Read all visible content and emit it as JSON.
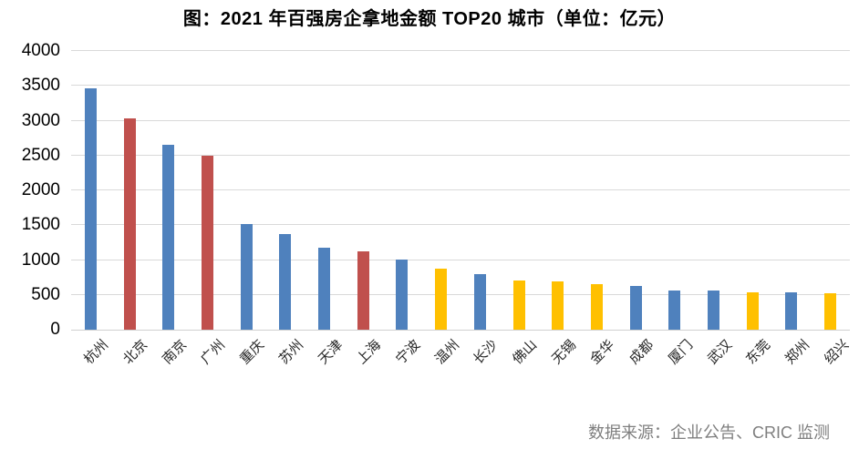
{
  "title": "图：2021 年百强房企拿地金额 TOP20 城市（单位：亿元）",
  "source": "数据来源：企业公告、CRIC 监测",
  "colors": {
    "blue": "#4F81BD",
    "red": "#C0504D",
    "yellow": "#FFC000",
    "gridline": "#D9D9D9",
    "axis_line": "#D0D0D0",
    "title_text": "#000000",
    "axis_text": "#000000",
    "category_text": "#262626",
    "source_text": "#7F7F7F"
  },
  "chart_data": {
    "type": "bar",
    "title": "图：2021 年百强房企拿地金额 TOP20 城市（单位：亿元）",
    "unit": "亿元",
    "categories": [
      "杭州",
      "北京",
      "南京",
      "广州",
      "重庆",
      "苏州",
      "天津",
      "上海",
      "宁波",
      "温州",
      "长沙",
      "佛山",
      "无锡",
      "金华",
      "成都",
      "厦门",
      "武汉",
      "东莞",
      "郑州",
      "绍兴"
    ],
    "values": [
      3460,
      3035,
      2655,
      2500,
      1520,
      1370,
      1170,
      1120,
      1010,
      880,
      800,
      710,
      690,
      655,
      625,
      565,
      560,
      535,
      530,
      520
    ],
    "bar_colors": [
      "blue",
      "red",
      "blue",
      "red",
      "blue",
      "blue",
      "blue",
      "red",
      "blue",
      "yellow",
      "blue",
      "yellow",
      "yellow",
      "yellow",
      "blue",
      "blue",
      "blue",
      "yellow",
      "blue",
      "yellow"
    ],
    "xlabel": "",
    "ylabel": "",
    "ylim": [
      0,
      4000
    ],
    "y_ticks": [
      0,
      500,
      1000,
      1500,
      2000,
      2500,
      3000,
      3500,
      4000
    ],
    "grid": "horizontal",
    "legend": "none"
  }
}
